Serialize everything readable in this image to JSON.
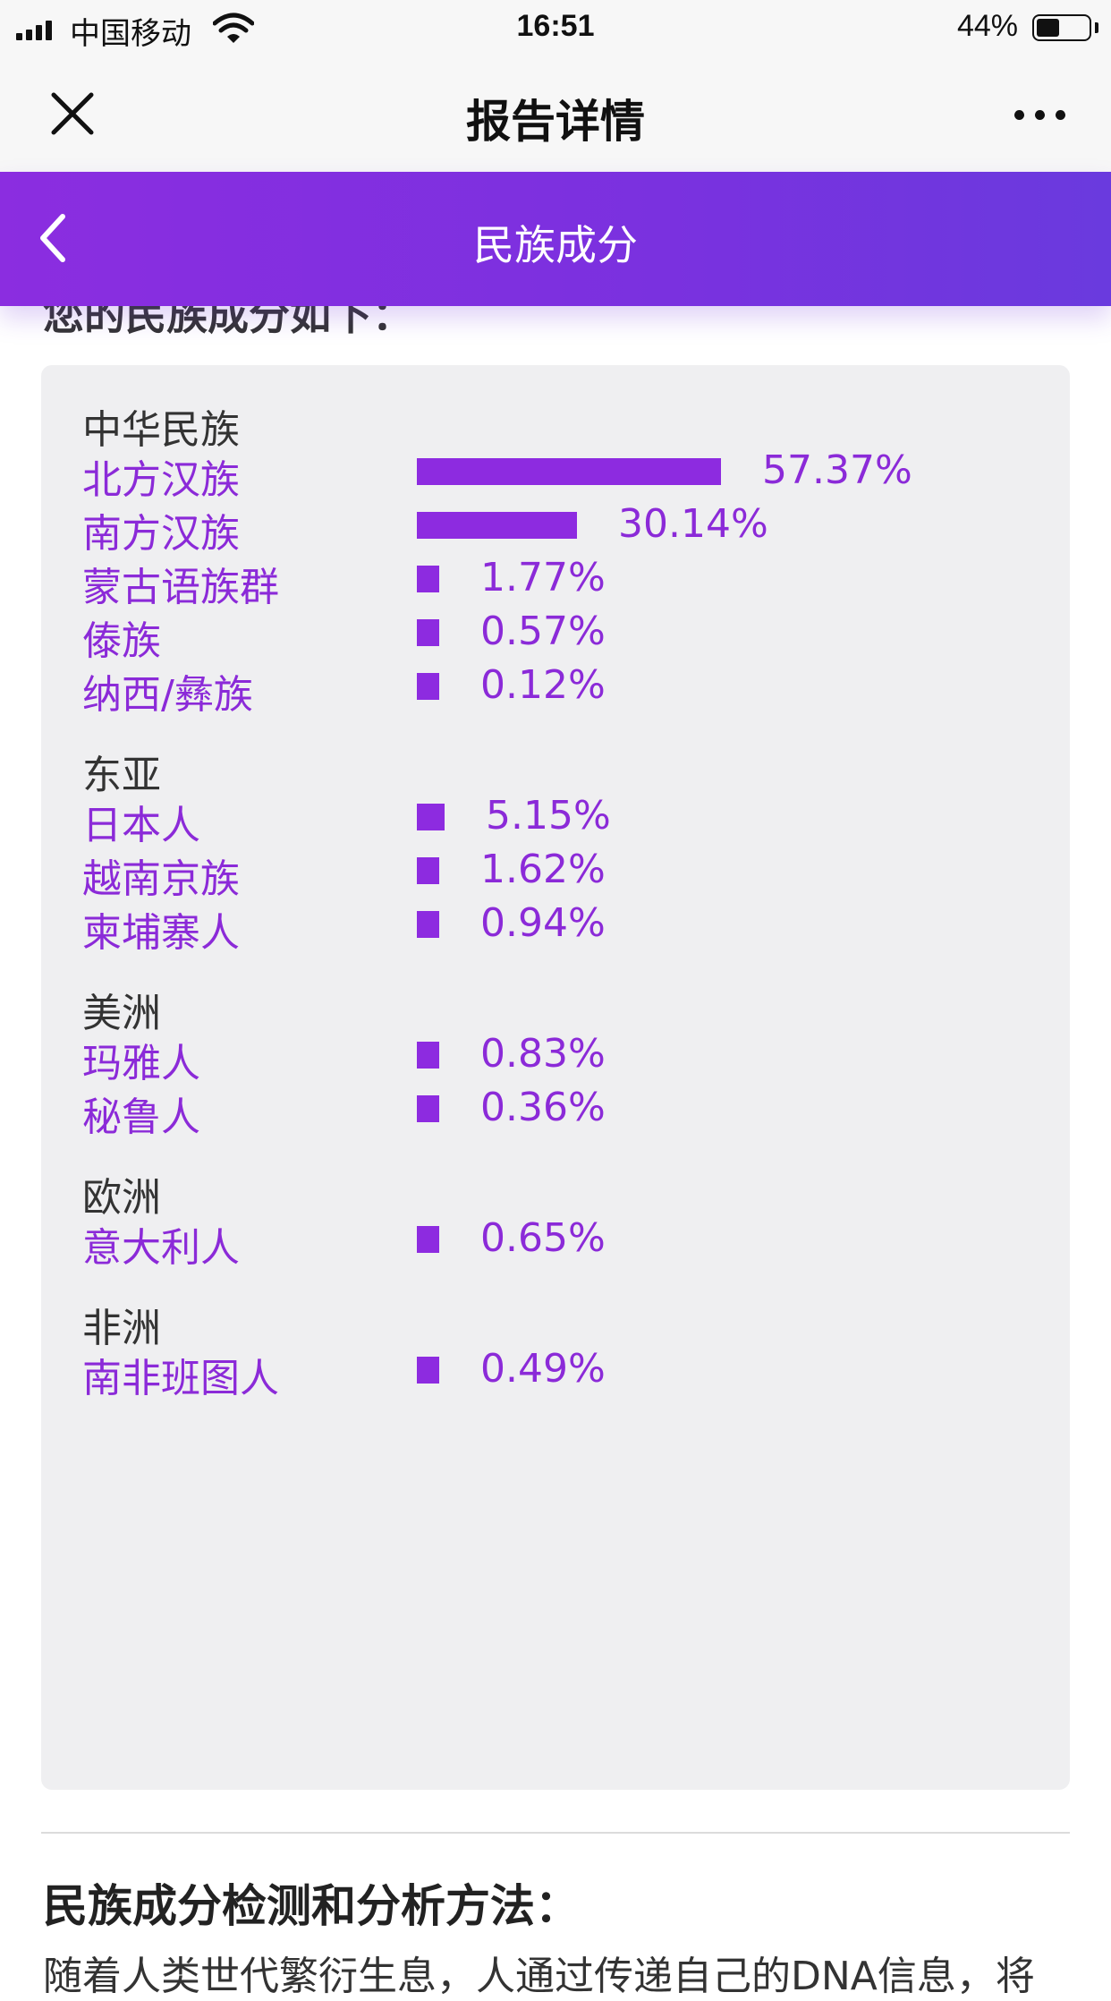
{
  "status_bar": {
    "carrier": "中国移动",
    "time": "16:51",
    "battery": "44%",
    "battery_level": 0.44
  },
  "nav_bar": {
    "title": "报告详情",
    "close_icon": "close-icon",
    "more_icon": "more-dots-icon"
  },
  "header": {
    "title": "民族成分",
    "back_icon": "chevron-left-icon",
    "background": "#8b2de0"
  },
  "intro": {
    "text": "您的民族成分如下："
  },
  "accent_color": "#8b2ad8",
  "groups": [
    {
      "title": "中华民族",
      "items": [
        {
          "name": "北方汉族",
          "percent": 57.37,
          "label": "57.37%"
        },
        {
          "name": "南方汉族",
          "percent": 30.14,
          "label": "30.14%"
        },
        {
          "name": "蒙古语族群",
          "percent": 1.77,
          "label": "1.77%"
        },
        {
          "name": "傣族",
          "percent": 0.57,
          "label": "0.57%"
        },
        {
          "name": "纳西/彝族",
          "percent": 0.12,
          "label": "0.12%"
        }
      ]
    },
    {
      "title": "东亚",
      "items": [
        {
          "name": "日本人",
          "percent": 5.15,
          "label": "5.15%"
        },
        {
          "name": "越南京族",
          "percent": 1.62,
          "label": "1.62%"
        },
        {
          "name": "柬埔寨人",
          "percent": 0.94,
          "label": "0.94%"
        }
      ]
    },
    {
      "title": "美洲",
      "items": [
        {
          "name": "玛雅人",
          "percent": 0.83,
          "label": "0.83%"
        },
        {
          "name": "秘鲁人",
          "percent": 0.36,
          "label": "0.36%"
        }
      ]
    },
    {
      "title": "欧洲",
      "items": [
        {
          "name": "意大利人",
          "percent": 0.65,
          "label": "0.65%"
        }
      ]
    },
    {
      "title": "非洲",
      "items": [
        {
          "name": "南非班图人",
          "percent": 0.49,
          "label": "0.49%"
        }
      ]
    }
  ],
  "method": {
    "title": "民族成分检测和分析方法：",
    "text": "随着人类世代繁衍生息，人通过传递自己的DNA信息，将"
  }
}
